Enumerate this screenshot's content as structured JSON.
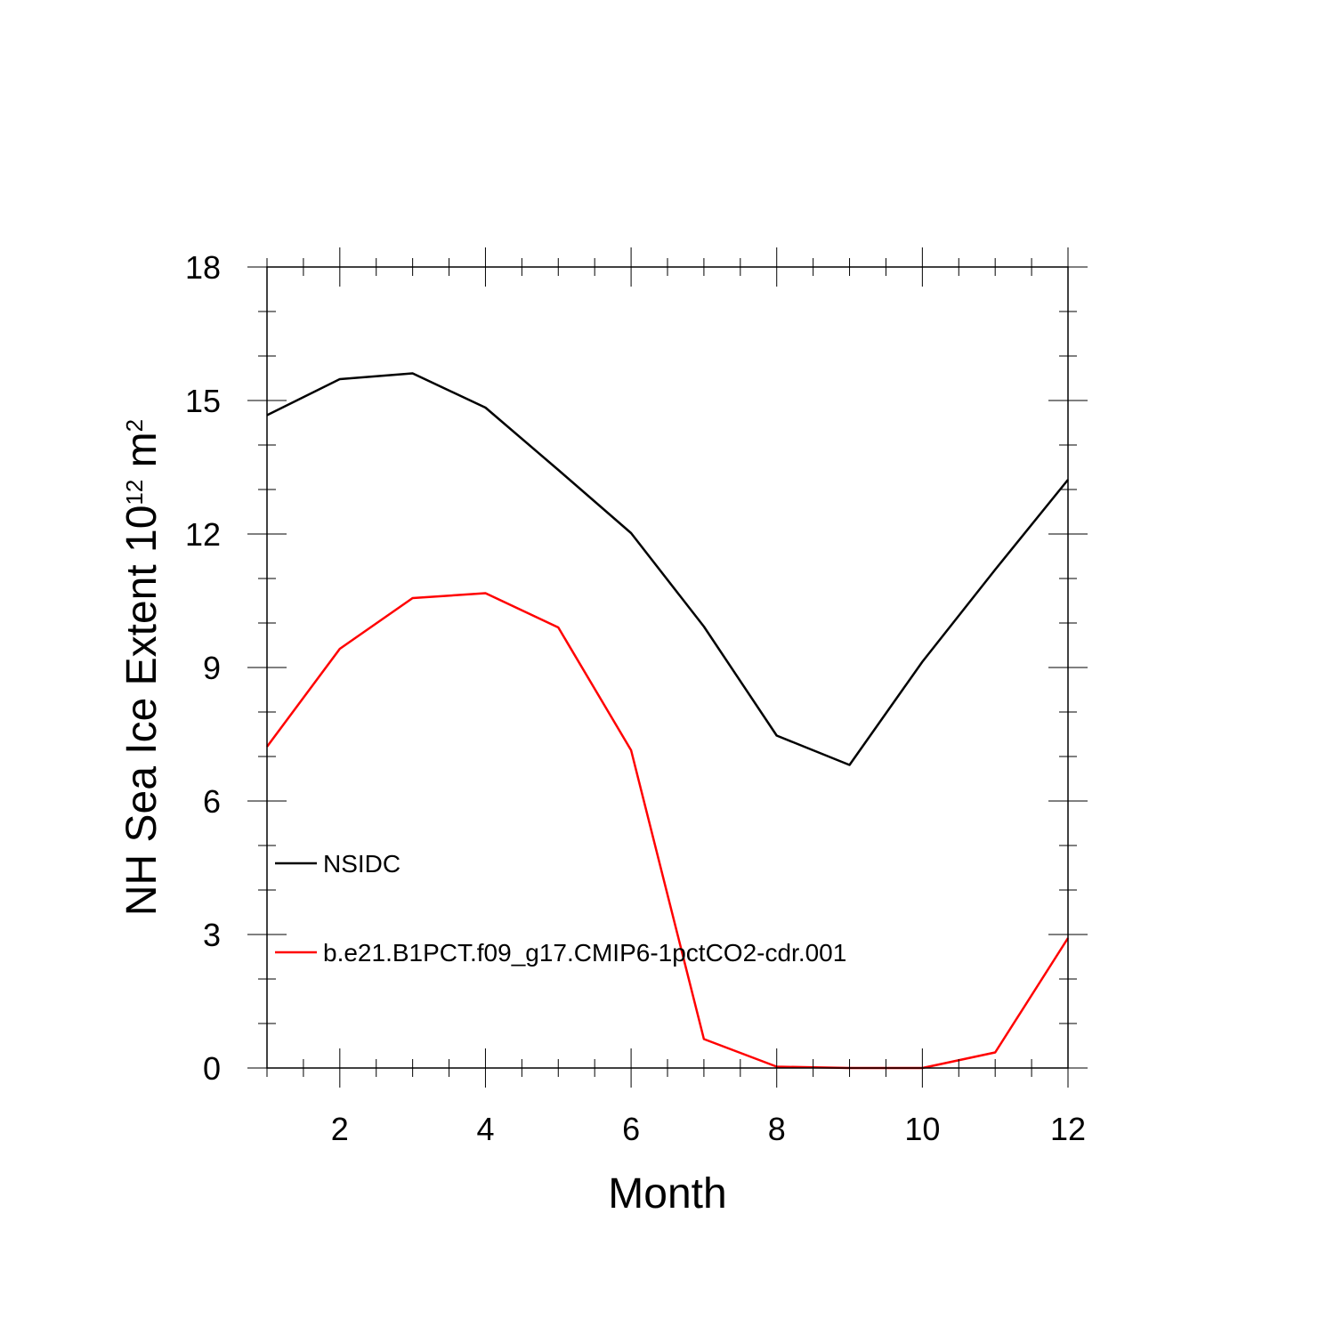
{
  "chart_data": {
    "type": "line",
    "xlabel": "Month",
    "ylabel_main": "NH Sea Ice Extent 10",
    "ylabel_sup": "12",
    "ylabel_unit": " m",
    "ylabel_unit_sup": "2",
    "xlim": [
      1,
      12
    ],
    "ylim": [
      0,
      18
    ],
    "x_ticks": [
      2,
      4,
      6,
      8,
      10,
      12
    ],
    "x_tick_labels": [
      "2",
      "4",
      "6",
      "8",
      "10",
      "12"
    ],
    "y_ticks": [
      0,
      3,
      6,
      9,
      12,
      15,
      18
    ],
    "y_tick_labels": [
      "0",
      "3",
      "6",
      "9",
      "12",
      "15",
      "18"
    ],
    "x": [
      1,
      2,
      3,
      4,
      5,
      6,
      7,
      8,
      9,
      10,
      11,
      12
    ],
    "grid": false,
    "legend_position": "inside-left",
    "series": [
      {
        "name": "NSIDC",
        "color": "#000000",
        "values": [
          14.67,
          15.48,
          15.61,
          14.84,
          13.44,
          12.02,
          9.92,
          7.47,
          6.81,
          9.13,
          11.2,
          13.22
        ]
      },
      {
        "name": "b.e21.B1PCT.f09_g17.CMIP6-1pctCO2-cdr.001",
        "color": "#ff0000",
        "values": [
          7.22,
          9.42,
          10.56,
          10.67,
          9.9,
          7.14,
          0.65,
          0.03,
          0.0,
          0.0,
          0.35,
          2.92
        ]
      }
    ]
  }
}
